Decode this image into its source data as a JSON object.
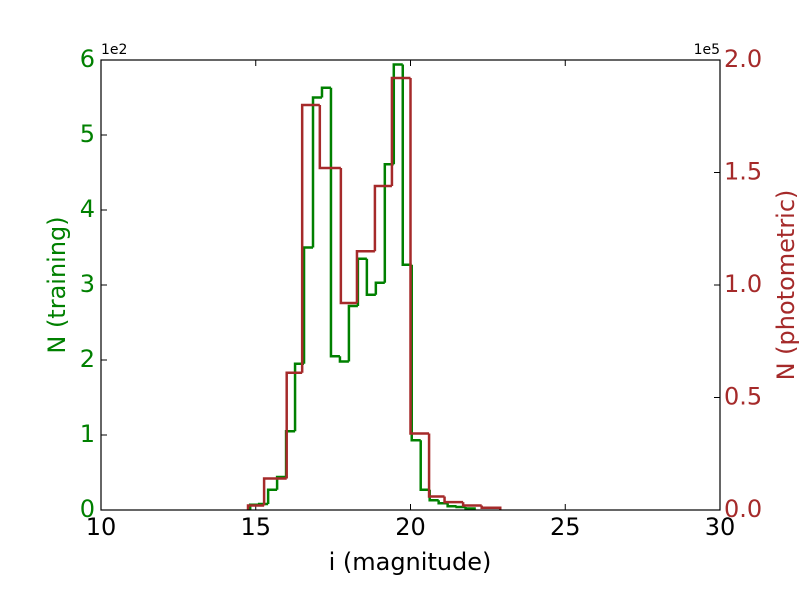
{
  "chart_data": {
    "type": "histogram",
    "xlabel": "i (magnitude)",
    "ylabel": "N (training)",
    "y2label": "N (photometric)",
    "y_offset_label": "1e2",
    "y2_offset_label": "1e5",
    "xlim": [
      10,
      30
    ],
    "xticks": [
      10,
      15,
      20,
      25,
      30
    ],
    "ylim": [
      0,
      6
    ],
    "yticks": [
      0,
      1,
      2,
      3,
      4,
      5,
      6
    ],
    "y2lim": [
      0,
      2
    ],
    "y2ticks": [
      {
        "value": 0,
        "label": "0.0"
      },
      {
        "value": 0.5,
        "label": "0.5"
      },
      {
        "value": 1,
        "label": "1.0"
      },
      {
        "value": 1.5,
        "label": "1.5"
      },
      {
        "value": 2,
        "label": "2.0"
      }
    ],
    "ylabel_color": "#008000",
    "y2label_color": "#a52a2a",
    "series": [
      {
        "color": "#008000",
        "axis": "y",
        "bins": [
          14.82,
          15.11,
          15.4,
          15.69,
          15.98,
          16.27,
          16.56,
          16.85,
          17.14,
          17.43,
          17.72,
          18.01,
          18.3,
          18.59,
          18.88,
          19.17,
          19.46,
          19.75,
          20.04,
          20.33,
          20.62,
          20.91,
          21.2,
          21.49,
          21.78,
          22.07
        ],
        "values": [
          0.07,
          0.08,
          0.27,
          0.44,
          1.05,
          1.95,
          3.5,
          5.5,
          5.63,
          2.05,
          1.98,
          2.72,
          3.35,
          2.87,
          3.03,
          4.61,
          5.94,
          3.27,
          0.93,
          0.27,
          0.13,
          0.09,
          0.05,
          0.04,
          0.02
        ]
      },
      {
        "color": "#a52a2a",
        "axis": "y2",
        "bins": [
          14.75,
          15.27,
          16.0,
          16.5,
          17.07,
          17.75,
          18.27,
          18.85,
          19.4,
          20.0,
          20.6,
          21.1,
          21.7,
          22.3,
          22.9
        ],
        "values": [
          0.02,
          0.14,
          0.61,
          1.8,
          1.52,
          0.92,
          1.15,
          1.44,
          1.92,
          0.34,
          0.06,
          0.035,
          0.02,
          0.01
        ]
      }
    ]
  }
}
